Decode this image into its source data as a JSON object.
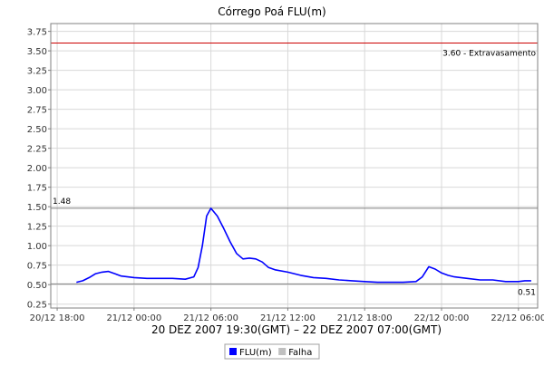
{
  "chart_data": {
    "type": "line",
    "title": "Córrego Poá FLU(m)",
    "x_axis_title": "20 DEZ 2007 19:30(GMT) – 22 DEZ 2007 07:00(GMT)",
    "xlabel": "",
    "ylabel": "",
    "ylim": [
      0.2,
      3.85
    ],
    "xlim": [
      "2007-12-20 17:30",
      "2007-12-22 07:30"
    ],
    "y_ticks": [
      "0.25",
      "0.50",
      "0.75",
      "1.00",
      "1.25",
      "1.50",
      "1.75",
      "2.00",
      "2.25",
      "2.50",
      "2.75",
      "3.00",
      "3.25",
      "3.50",
      "3.75"
    ],
    "x_ticks": [
      {
        "x": "2007-12-20 18:00",
        "label": "20/12 18:00"
      },
      {
        "x": "2007-12-21 00:00",
        "label": "21/12 00:00"
      },
      {
        "x": "2007-12-21 06:00",
        "label": "21/12 06:00"
      },
      {
        "x": "2007-12-21 12:00",
        "label": "21/12 12:00"
      },
      {
        "x": "2007-12-21 18:00",
        "label": "21/12 18:00"
      },
      {
        "x": "2007-12-22 00:00",
        "label": "22/12 00:00"
      },
      {
        "x": "2007-12-22 06:00",
        "label": "22/12 06:00"
      }
    ],
    "grid": true,
    "legend_position": "bottom",
    "legend": [
      {
        "name": "FLU(m)",
        "color": "#0000ff"
      },
      {
        "name": "Falha",
        "color": "#c0c0c0"
      }
    ],
    "reference_lines": [
      {
        "value": 3.6,
        "label": "3.60 - Extravasamento",
        "color": "#cc0000"
      },
      {
        "value": 1.48,
        "label": "1.48",
        "color": "#808080"
      },
      {
        "value": 0.51,
        "label": "0.51",
        "color": "#808080"
      }
    ],
    "series": [
      {
        "name": "FLU(m)",
        "color": "#0000ff",
        "points": [
          [
            "2007-12-20 19:30",
            0.53
          ],
          [
            "2007-12-20 20:00",
            0.55
          ],
          [
            "2007-12-20 20:30",
            0.59
          ],
          [
            "2007-12-20 21:00",
            0.64
          ],
          [
            "2007-12-20 21:30",
            0.66
          ],
          [
            "2007-12-20 22:00",
            0.67
          ],
          [
            "2007-12-20 22:30",
            0.64
          ],
          [
            "2007-12-20 23:00",
            0.61
          ],
          [
            "2007-12-21 00:00",
            0.59
          ],
          [
            "2007-12-21 01:00",
            0.58
          ],
          [
            "2007-12-21 02:00",
            0.58
          ],
          [
            "2007-12-21 03:00",
            0.58
          ],
          [
            "2007-12-21 04:00",
            0.57
          ],
          [
            "2007-12-21 04:40",
            0.6
          ],
          [
            "2007-12-21 05:00",
            0.72
          ],
          [
            "2007-12-21 05:20",
            1.0
          ],
          [
            "2007-12-21 05:40",
            1.38
          ],
          [
            "2007-12-21 06:00",
            1.48
          ],
          [
            "2007-12-21 06:30",
            1.38
          ],
          [
            "2007-12-21 07:00",
            1.22
          ],
          [
            "2007-12-21 07:30",
            1.05
          ],
          [
            "2007-12-21 08:00",
            0.9
          ],
          [
            "2007-12-21 08:30",
            0.83
          ],
          [
            "2007-12-21 09:00",
            0.84
          ],
          [
            "2007-12-21 09:30",
            0.83
          ],
          [
            "2007-12-21 10:00",
            0.79
          ],
          [
            "2007-12-21 10:30",
            0.72
          ],
          [
            "2007-12-21 11:00",
            0.69
          ],
          [
            "2007-12-21 12:00",
            0.66
          ],
          [
            "2007-12-21 13:00",
            0.62
          ],
          [
            "2007-12-21 14:00",
            0.59
          ],
          [
            "2007-12-21 15:00",
            0.58
          ],
          [
            "2007-12-21 16:00",
            0.56
          ],
          [
            "2007-12-21 17:00",
            0.55
          ],
          [
            "2007-12-21 18:00",
            0.54
          ],
          [
            "2007-12-21 19:00",
            0.53
          ],
          [
            "2007-12-21 20:00",
            0.53
          ],
          [
            "2007-12-21 21:00",
            0.53
          ],
          [
            "2007-12-21 22:00",
            0.54
          ],
          [
            "2007-12-21 22:30",
            0.6
          ],
          [
            "2007-12-21 23:00",
            0.73
          ],
          [
            "2007-12-21 23:30",
            0.7
          ],
          [
            "2007-12-22 00:00",
            0.65
          ],
          [
            "2007-12-22 00:30",
            0.62
          ],
          [
            "2007-12-22 01:00",
            0.6
          ],
          [
            "2007-12-22 02:00",
            0.58
          ],
          [
            "2007-12-22 03:00",
            0.56
          ],
          [
            "2007-12-22 04:00",
            0.56
          ],
          [
            "2007-12-22 05:00",
            0.54
          ],
          [
            "2007-12-22 06:00",
            0.54
          ],
          [
            "2007-12-22 06:30",
            0.55
          ],
          [
            "2007-12-22 07:00",
            0.55
          ]
        ]
      }
    ]
  }
}
